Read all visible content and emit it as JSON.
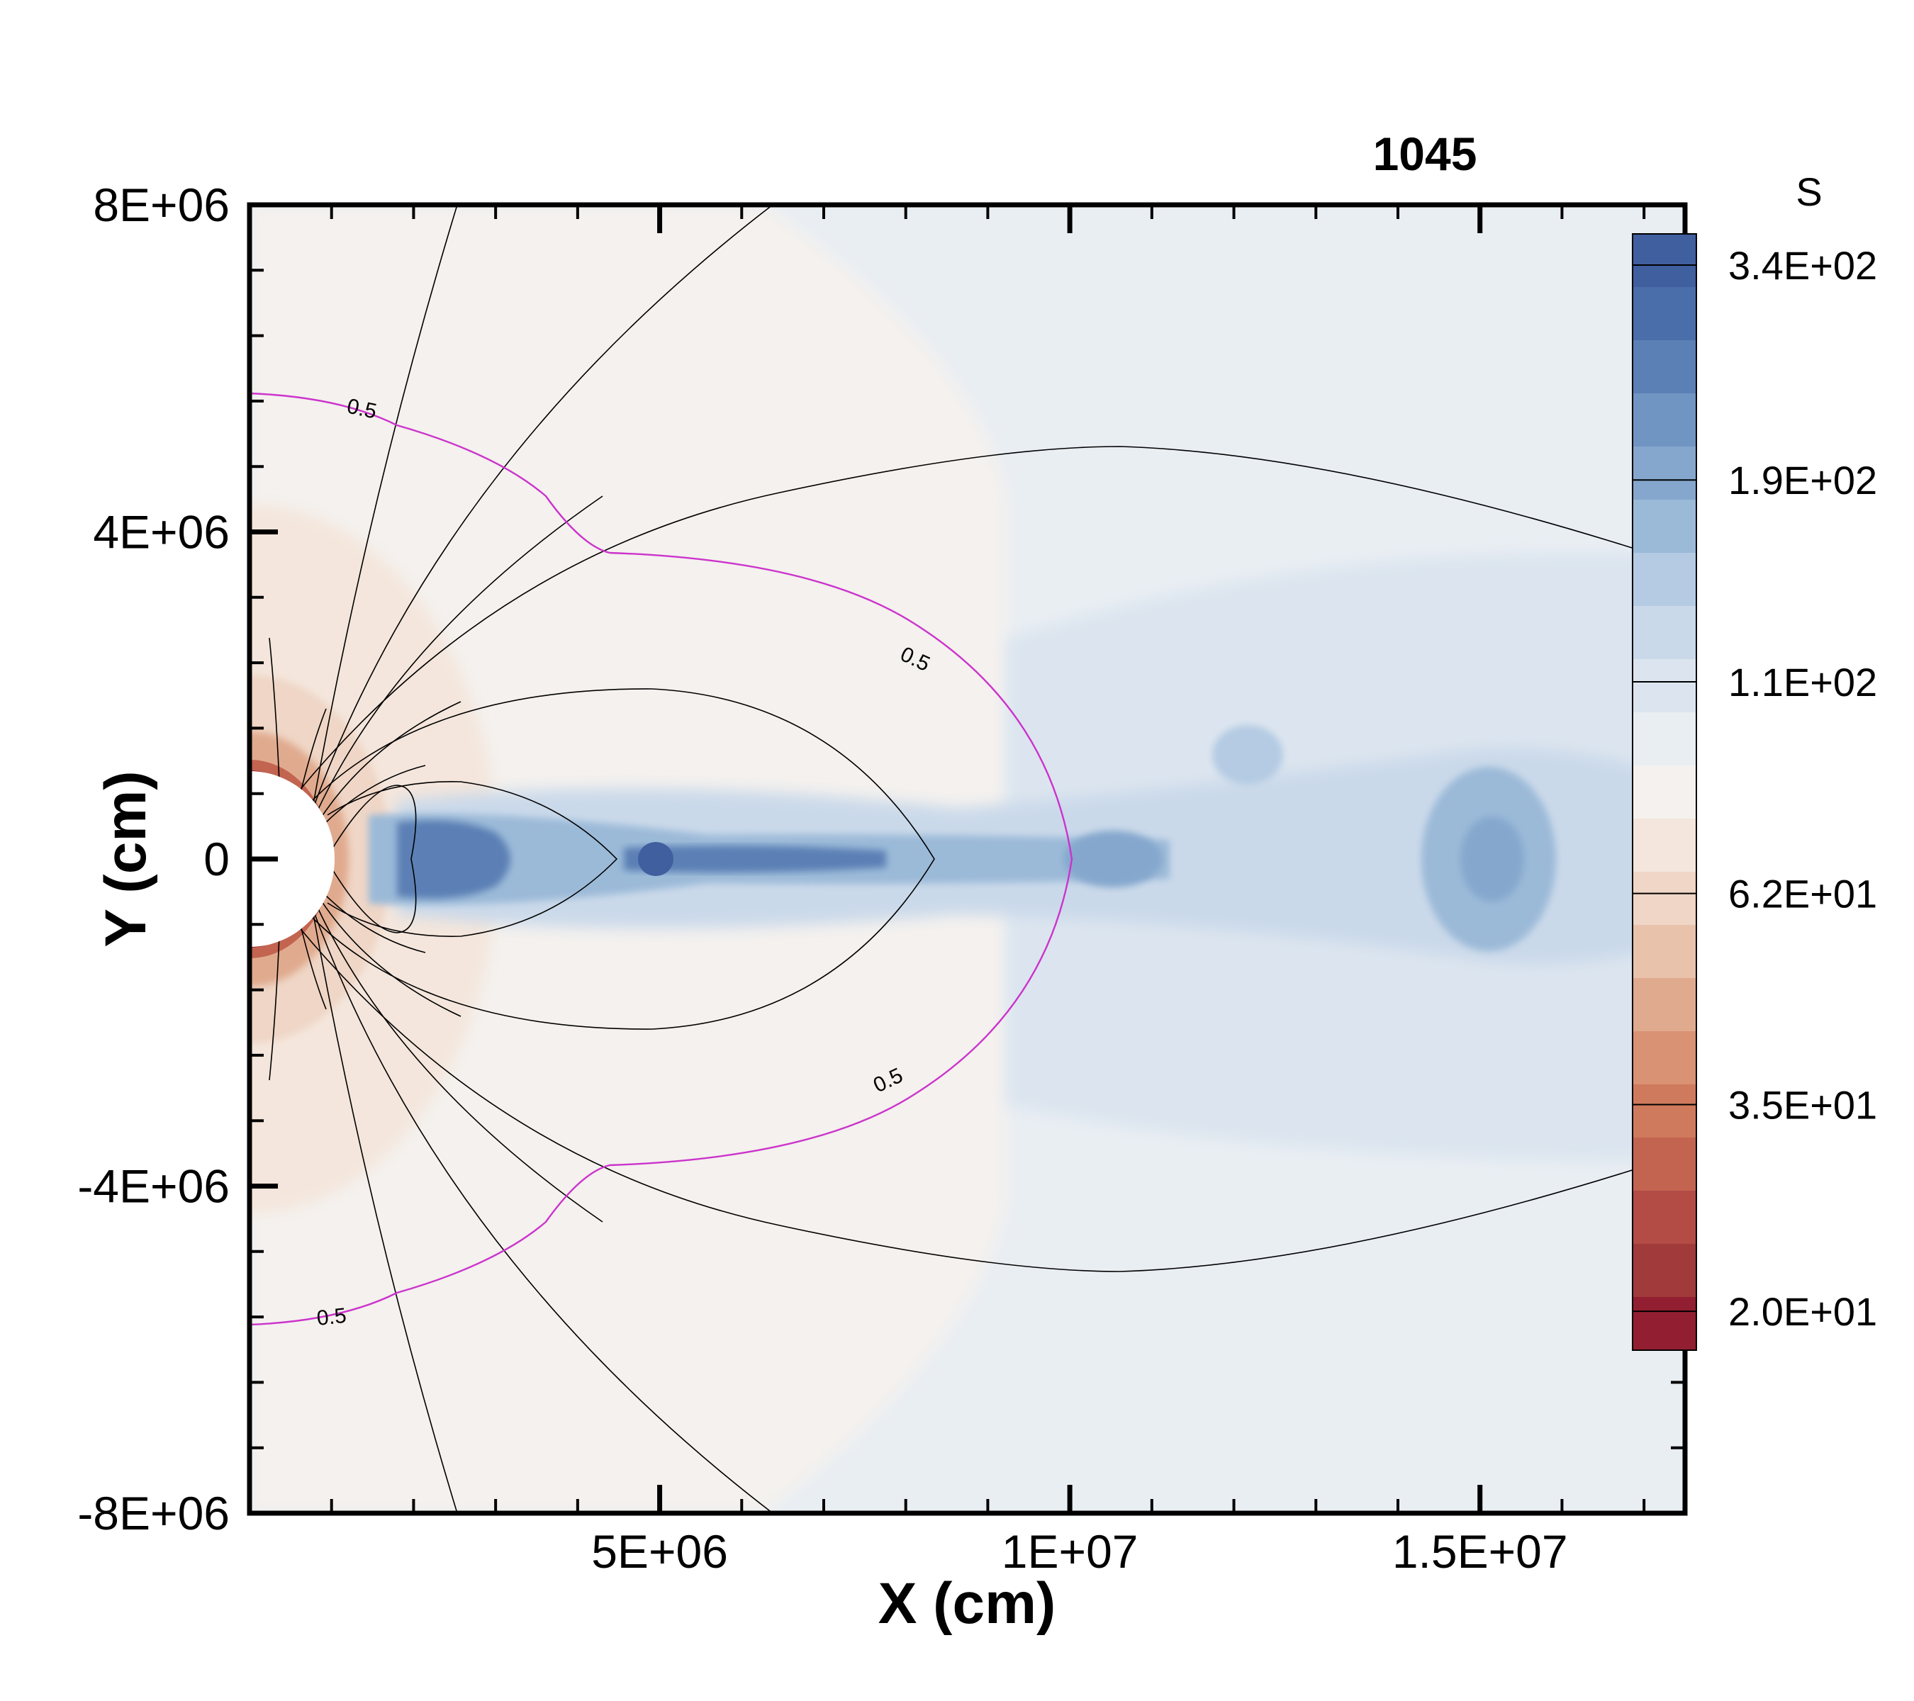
{
  "chart_data": {
    "type": "heatmap",
    "title": "1045",
    "xlabel": "X (cm)",
    "ylabel": "Y (cm)",
    "xlim": [
      0,
      17500000
    ],
    "ylim": [
      -8000000,
      8000000
    ],
    "x_ticks": [
      {
        "value": 5000000,
        "label": "5E+06"
      },
      {
        "value": 10000000,
        "label": "1E+07"
      },
      {
        "value": 15000000,
        "label": "1.5E+07"
      }
    ],
    "y_ticks": [
      {
        "value": 8000000,
        "label": "8E+06"
      },
      {
        "value": 4000000,
        "label": "4E+06"
      },
      {
        "value": 0,
        "label": "0"
      },
      {
        "value": -4000000,
        "label": "-4E+06"
      },
      {
        "value": -8000000,
        "label": "-8E+06"
      }
    ],
    "colorbar": {
      "title": "S",
      "scale": "log",
      "range": [
        18,
        370
      ],
      "labels": [
        {
          "value": 340,
          "label": "3.4E+02"
        },
        {
          "value": 190,
          "label": "1.9E+02"
        },
        {
          "value": 110,
          "label": "1.1E+02"
        },
        {
          "value": 62,
          "label": "6.2E+01"
        },
        {
          "value": 35,
          "label": "3.5E+01"
        },
        {
          "value": 20,
          "label": "2.0E+01"
        }
      ],
      "levels": [
        "#405f9f",
        "#4a6ea9",
        "#5b80b5",
        "#7095c2",
        "#85a7cd",
        "#9bbad8",
        "#b4cbe3",
        "#cad9ea",
        "#dce5ef",
        "#e9eef3",
        "#f4f1ee",
        "#f4e6dc",
        "#efd6c6",
        "#e9c2ab",
        "#e0aa8e",
        "#d99273",
        "#cf7a5d",
        "#c36450",
        "#b24c45",
        "#a13a3b",
        "#921f31"
      ]
    },
    "contour_label": "0.5",
    "primary_series": "S",
    "series": [
      {
        "color": "#000000"
      },
      {
        "color": "#cc33cc"
      }
    ]
  }
}
